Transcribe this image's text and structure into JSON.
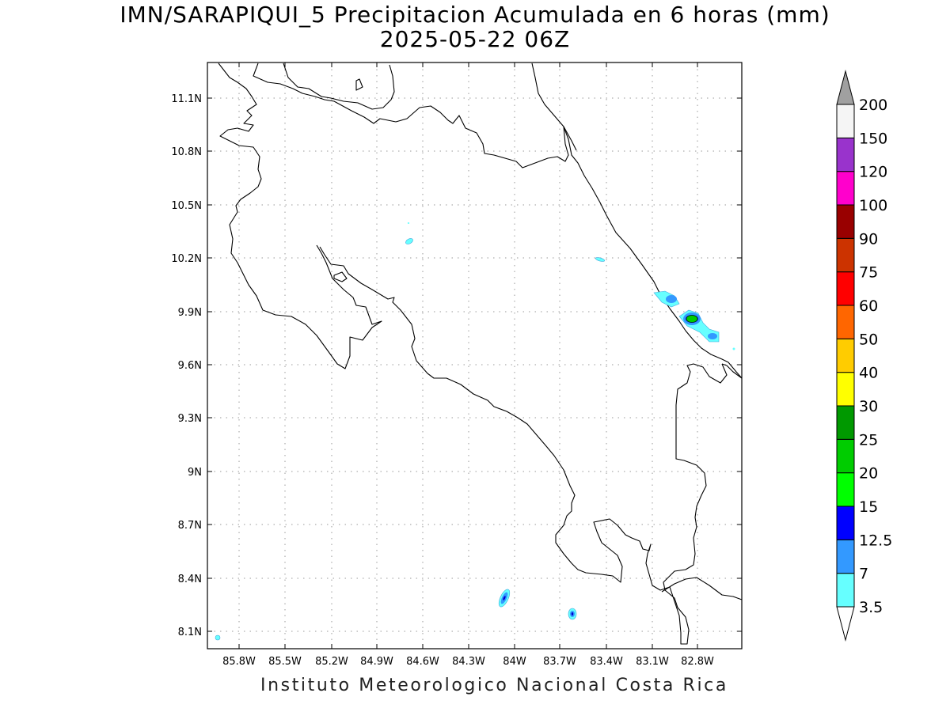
{
  "title": {
    "line1": "IMN/SARAPIQUI_5 Precipitacion Acumulada en 6 horas (mm)",
    "line2": "2025-05-22 06Z"
  },
  "footer": "Instituto Meteorologico Nacional Costa Rica",
  "map": {
    "lon_range": [
      -86.0,
      -82.6
    ],
    "lat_range": [
      8.0,
      11.3
    ],
    "lat_ticks": [
      "11.1N",
      "10.8N",
      "10.5N",
      "10.2N",
      "9.9N",
      "9.6N",
      "9.3N",
      "9N",
      "8.7N",
      "8.4N",
      "8.1N"
    ],
    "lon_ticks": [
      "85.8W",
      "85.5W",
      "85.2W",
      "84.9W",
      "84.6W",
      "84.3W",
      "84W",
      "83.7W",
      "83.4W",
      "83.1W",
      "82.8W"
    ],
    "grid": "dotted"
  },
  "colorbar": {
    "labels": [
      "3.5",
      "7",
      "12.5",
      "15",
      "20",
      "25",
      "30",
      "40",
      "50",
      "60",
      "75",
      "90",
      "100",
      "120",
      "150",
      "200"
    ],
    "colors": [
      "#66ffff",
      "#3399ff",
      "#0000ff",
      "#00ff00",
      "#00cc00",
      "#009900",
      "#ffff00",
      "#ffcc00",
      "#ff6600",
      "#ff0000",
      "#cc3300",
      "#990000",
      "#ff00cc",
      "#9933cc",
      "#f5f5f5"
    ],
    "over_color": "#a0a0a0",
    "under_color": "#ffffff"
  }
}
